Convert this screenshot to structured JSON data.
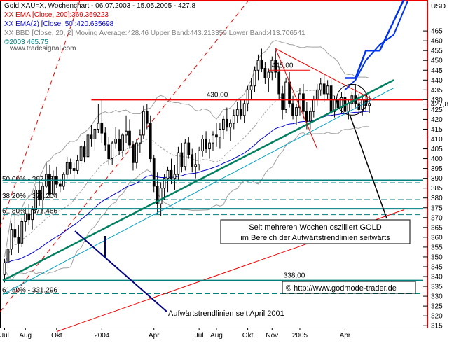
{
  "chart_data": {
    "type": "candlestick",
    "instrument": "Gold XAU=X",
    "period_label": "Wochenchart - 06.07.2003 - 15.05.2005 - 427.8",
    "currency": "USD",
    "ylim": [
      314,
      480
    ],
    "y_ticks": [
      315,
      320,
      325,
      330,
      335,
      340,
      345,
      350,
      355,
      360,
      365,
      370,
      375,
      380,
      385,
      390,
      395,
      400,
      405,
      410,
      415,
      420,
      425,
      430,
      435,
      440,
      445,
      450,
      455,
      460,
      465
    ],
    "current_price_label": "427,8",
    "current_price": 427.8,
    "x_tick_labels": [
      "Jul",
      "Aug",
      "Okt",
      "2004",
      "Apr",
      "Jul",
      "Aug",
      "Okt",
      "Nov",
      "2005",
      "Apr"
    ],
    "x_tick_weeks": [
      0,
      6,
      15,
      28,
      43,
      56,
      61,
      70,
      77,
      85,
      98
    ],
    "num_weeks": 106,
    "legend": [
      {
        "text": "Gold XAU=X, Wochenchart - 06.07.2003 - 15.05.2005 - 427.8",
        "color": "#000000"
      },
      {
        "text": "XX EMA [Close, 200]:369.369223",
        "color": "#dd0000"
      },
      {
        "text": "XX EMA(2) [Close, 50]:420.635698",
        "color": "#0000cc"
      },
      {
        "text": "XX BBD [Close, 20, 2] Moving Average:428.46 Upper Band:443.213359 Lower Band:413.706541",
        "color": "#808080"
      },
      {
        "text": "©2003 465.75",
        "color": "#008080"
      }
    ],
    "watermark": "www.tradesignal.com",
    "candles": [
      [
        341,
        349,
        337,
        347
      ],
      [
        347,
        357,
        344,
        354
      ],
      [
        354,
        367,
        351,
        364
      ],
      [
        364,
        372,
        358,
        360
      ],
      [
        360,
        366,
        352,
        357
      ],
      [
        357,
        370,
        355,
        368
      ],
      [
        368,
        375,
        363,
        372
      ],
      [
        372,
        377,
        366,
        369
      ],
      [
        369,
        376,
        364,
        374
      ],
      [
        374,
        386,
        372,
        384
      ],
      [
        384,
        390,
        376,
        379
      ],
      [
        379,
        388,
        373,
        386
      ],
      [
        386,
        398,
        385,
        392
      ],
      [
        392,
        397,
        380,
        382
      ],
      [
        382,
        394,
        381,
        391
      ],
      [
        391,
        396,
        385,
        387
      ],
      [
        387,
        390,
        383,
        386
      ],
      [
        386,
        393,
        384,
        392
      ],
      [
        392,
        401,
        390,
        398
      ],
      [
        398,
        400,
        392,
        395
      ],
      [
        395,
        398,
        390,
        394
      ],
      [
        394,
        402,
        392,
        399
      ],
      [
        399,
        407,
        396,
        406
      ],
      [
        406,
        409,
        398,
        401
      ],
      [
        401,
        413,
        400,
        412
      ],
      [
        412,
        417,
        406,
        410
      ],
      [
        410,
        415,
        404,
        415
      ],
      [
        415,
        428,
        413,
        418
      ],
      [
        418,
        430,
        408,
        413
      ],
      [
        413,
        416,
        404,
        407
      ],
      [
        407,
        411,
        397,
        400
      ],
      [
        400,
        409,
        397,
        408
      ],
      [
        408,
        416,
        405,
        410
      ],
      [
        410,
        415,
        402,
        404
      ],
      [
        404,
        413,
        401,
        412
      ],
      [
        412,
        422,
        408,
        414
      ],
      [
        414,
        420,
        405,
        407
      ],
      [
        407,
        409,
        394,
        398
      ],
      [
        398,
        410,
        395,
        408
      ],
      [
        408,
        415,
        403,
        412
      ],
      [
        412,
        427,
        410,
        424
      ],
      [
        424,
        428,
        415,
        418
      ],
      [
        418,
        422,
        398,
        400
      ],
      [
        400,
        402,
        383,
        386
      ],
      [
        386,
        393,
        372,
        377
      ],
      [
        377,
        388,
        371,
        385
      ],
      [
        385,
        392,
        379,
        390
      ],
      [
        390,
        396,
        383,
        394
      ],
      [
        394,
        400,
        387,
        390
      ],
      [
        390,
        397,
        384,
        392
      ],
      [
        392,
        406,
        389,
        403
      ],
      [
        403,
        408,
        393,
        396
      ],
      [
        396,
        410,
        394,
        408
      ],
      [
        408,
        411,
        400,
        402
      ],
      [
        402,
        405,
        393,
        396
      ],
      [
        396,
        403,
        390,
        397
      ],
      [
        397,
        406,
        394,
        404
      ],
      [
        404,
        412,
        401,
        410
      ],
      [
        410,
        414,
        403,
        405
      ],
      [
        405,
        410,
        400,
        408
      ],
      [
        408,
        414,
        404,
        412
      ],
      [
        412,
        418,
        406,
        411
      ],
      [
        411,
        418,
        405,
        415
      ],
      [
        415,
        422,
        410,
        420
      ],
      [
        420,
        426,
        414,
        416
      ],
      [
        416,
        420,
        409,
        418
      ],
      [
        418,
        425,
        415,
        422
      ],
      [
        422,
        429,
        418,
        425
      ],
      [
        425,
        430,
        420,
        422
      ],
      [
        422,
        430,
        418,
        428
      ],
      [
        428,
        437,
        424,
        435
      ],
      [
        435,
        441,
        430,
        437
      ],
      [
        437,
        447,
        434,
        445
      ],
      [
        445,
        453,
        440,
        450
      ],
      [
        450,
        456,
        444,
        446
      ],
      [
        446,
        449,
        438,
        441
      ],
      [
        441,
        446,
        434,
        444
      ],
      [
        444,
        452,
        440,
        450
      ],
      [
        450,
        455,
        441,
        444
      ],
      [
        444,
        447,
        430,
        433
      ],
      [
        433,
        437,
        420,
        425
      ],
      [
        425,
        441,
        423,
        439
      ],
      [
        439,
        444,
        426,
        428
      ],
      [
        428,
        432,
        420,
        422
      ],
      [
        422,
        428,
        417,
        426
      ],
      [
        426,
        436,
        422,
        433
      ],
      [
        433,
        438,
        420,
        424
      ],
      [
        424,
        429,
        415,
        419
      ],
      [
        419,
        426,
        415,
        424
      ],
      [
        424,
        432,
        421,
        430
      ],
      [
        430,
        438,
        427,
        435
      ],
      [
        435,
        441,
        432,
        438
      ],
      [
        438,
        443,
        429,
        433
      ],
      [
        433,
        440,
        430,
        437
      ],
      [
        437,
        441,
        422,
        424
      ],
      [
        424,
        432,
        421,
        430
      ],
      [
        430,
        436,
        424,
        426
      ],
      [
        426,
        434,
        423,
        431
      ],
      [
        431,
        436,
        422,
        424
      ],
      [
        424,
        430,
        420,
        428
      ],
      [
        428,
        434,
        425,
        432
      ],
      [
        432,
        438,
        426,
        428
      ],
      [
        428,
        433,
        423,
        425
      ],
      [
        425,
        432,
        422,
        430
      ],
      [
        430,
        434,
        424,
        427
      ],
      [
        427,
        432,
        423,
        428
      ]
    ],
    "horizontal_lines": [
      {
        "price": 430,
        "label": "430,00",
        "color": "#ee0000"
      },
      {
        "price": 445,
        "label": "445,00",
        "color": "#ee0000"
      },
      {
        "price": 338,
        "label": "338,00",
        "color": "#007f7f"
      },
      {
        "price": 389,
        "label": "",
        "color": "#007f7f"
      },
      {
        "price": 374.5,
        "label": "",
        "color": "#007f7f"
      }
    ],
    "fib_levels": [
      {
        "label": "50.00% - 387.75",
        "price": 387.75
      },
      {
        "label": "38.20% - 379.204",
        "price": 379.204
      },
      {
        "label": "61.80% - 371.466",
        "price": 371.466
      },
      {
        "label": "61.80% - 331.296",
        "price": 331.296
      }
    ],
    "projection_x_weeks": [
      98,
      101,
      104,
      108,
      112,
      116
    ],
    "projection_upper_path": [
      441,
      441,
      455,
      455,
      470,
      485
    ],
    "projection_lower_path": [
      435,
      440,
      450,
      458,
      463,
      480
    ],
    "annotations": {
      "box_line1": "Seit mehreren Wochen  oszilliert GOLD",
      "box_line2": "im Bereich der Aufwärtstrendlinien seitwärts",
      "trend_label": "Aufwärtstrendlinien seit April 2001",
      "copyright": "© http://www.godmode-trader.de"
    }
  }
}
